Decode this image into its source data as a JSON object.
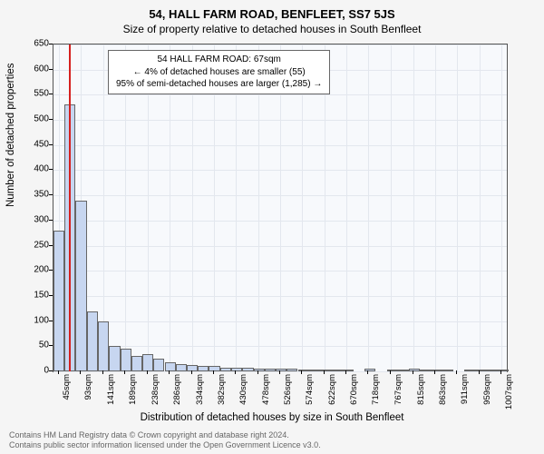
{
  "title_main": "54, HALL FARM ROAD, BENFLEET, SS7 5JS",
  "title_sub": "Size of property relative to detached houses in South Benfleet",
  "ylabel": "Number of detached properties",
  "xlabel": "Distribution of detached houses by size in South Benfleet",
  "footer_line1": "Contains HM Land Registry data © Crown copyright and database right 2024.",
  "footer_line2": "Contains public sector information licensed under the Open Government Licence v3.0.",
  "info_box": {
    "line1": "54 HALL FARM ROAD: 67sqm",
    "line2": "← 4% of detached houses are smaller (55)",
    "line3": "95% of semi-detached houses are larger (1,285) →"
  },
  "chart": {
    "type": "histogram",
    "background_color": "#f7f9fc",
    "grid_color": "#e3e7ee",
    "border_color": "#555555",
    "bar_fill": "#c7d6f0",
    "bar_border": "#666666",
    "marker_color": "#d62020",
    "marker_value": 67,
    "x_min": 33,
    "x_max": 1019,
    "y_min": 0,
    "y_max": 650,
    "ytick_step": 50,
    "yticks": [
      0,
      50,
      100,
      150,
      200,
      250,
      300,
      350,
      400,
      450,
      500,
      550,
      600,
      650
    ],
    "xticks": [
      45,
      93,
      141,
      189,
      238,
      286,
      334,
      382,
      430,
      478,
      526,
      574,
      622,
      670,
      718,
      767,
      815,
      863,
      911,
      959,
      1007
    ],
    "xtick_suffix": "sqm",
    "bin_starts": [
      33,
      57,
      81,
      105,
      130,
      154,
      178,
      202,
      226,
      250,
      275,
      299,
      323,
      347,
      371,
      395,
      420,
      444,
      468,
      492,
      516,
      540,
      565,
      589,
      613,
      637,
      661,
      709,
      758,
      782,
      806,
      830,
      854,
      878,
      927,
      951,
      975,
      999
    ],
    "bin_width": 24.15,
    "values": [
      280,
      530,
      340,
      120,
      100,
      50,
      45,
      30,
      35,
      25,
      18,
      15,
      12,
      10,
      10,
      8,
      8,
      8,
      6,
      6,
      5,
      5,
      4,
      4,
      4,
      3,
      3,
      6,
      3,
      3,
      5,
      3,
      3,
      3,
      3,
      4,
      3,
      3
    ]
  }
}
